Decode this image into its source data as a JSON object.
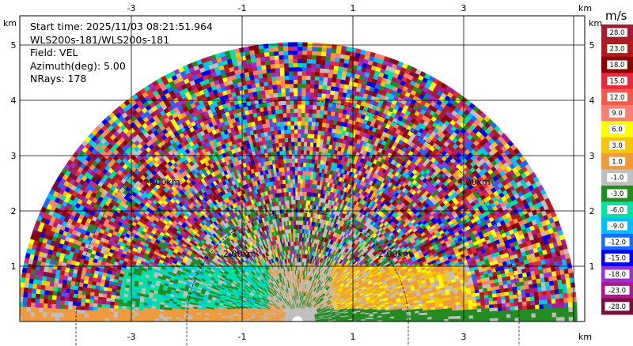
{
  "info": {
    "start_time": "Start time: 2025/11/03 08:21:51.964",
    "instrument": "WLS200s-181/WLS200s-181",
    "field": "Field: VEL",
    "azimuth": "Azimuth(deg): 5.00",
    "nrays": "NRays: 178"
  },
  "colorbar": {
    "unit": "m/s",
    "labels": [
      "28.0",
      "23.0",
      "18.0",
      "15.0",
      "12.0",
      "9.0",
      "6.0",
      "3.0",
      "1.0",
      "-1.0",
      "-3.0",
      "-6.0",
      "-9.0",
      "-12.0",
      "-15.0",
      "-18.0",
      "-23.0",
      "-28.0"
    ],
    "colors": [
      "#a51c30",
      "#b31b1b",
      "#8b0000",
      "#e8283c",
      "#f05a4a",
      "#f7806e",
      "#ffff00",
      "#f7c500",
      "#f09a3e",
      "#bfbfbf",
      "#228b22",
      "#00e0a0",
      "#00bfff",
      "#1a6aff",
      "#0000ee",
      "#9932cc",
      "#ad1a8e",
      "#7a0e3c"
    ]
  },
  "chart_data": {
    "type": "heatmap",
    "title": "",
    "x_axis": {
      "unit": "km",
      "ticks": [
        "-3",
        "-1",
        "1",
        "3"
      ],
      "range": [
        -5.5,
        5.5
      ]
    },
    "y_axis": {
      "unit": "km",
      "ticks": [
        "1",
        "2",
        "3",
        "4",
        "5"
      ],
      "range": [
        0,
        6
      ]
    },
    "range_rings": [
      "2.00km",
      "2.00km",
      "4.00km",
      "4.00km"
    ],
    "max_range_km": 5.0,
    "field": "VEL",
    "azimuth_deg": 5.0,
    "n_rays": 178,
    "value_range": [
      -28.0,
      28.0
    ],
    "grid": true
  }
}
